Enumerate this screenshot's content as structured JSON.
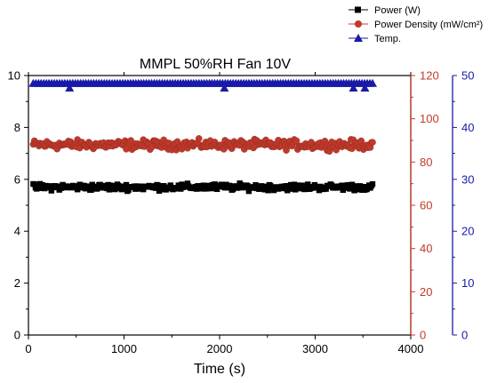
{
  "chart_data": {
    "type": "scatter",
    "title": "MMPL 50%RH Fan 10V",
    "xlabel": "Time (s)",
    "xlim": [
      0,
      4000
    ],
    "xticks": [
      "0",
      "1000",
      "2000",
      "3000",
      "4000"
    ],
    "left_axis": {
      "label": "",
      "ylim": [
        0,
        10
      ],
      "ticks": [
        "0",
        "2",
        "4",
        "6",
        "8",
        "10"
      ],
      "color": "#000000"
    },
    "right_axis_1": {
      "label": "",
      "ylim": [
        0,
        120
      ],
      "ticks": [
        "0",
        "20",
        "40",
        "60",
        "80",
        "100",
        "120"
      ],
      "color": "#c0392b"
    },
    "right_axis_2": {
      "label": "",
      "ylim": [
        0,
        50
      ],
      "ticks": [
        "0",
        "10",
        "20",
        "30",
        "40",
        "50"
      ],
      "color": "#1a1aa8"
    },
    "legend_position": "top-right",
    "series": [
      {
        "name": "Power (W)",
        "axis": "left",
        "marker": "square",
        "color": "#000000",
        "x_range": [
          50,
          3600
        ],
        "approx_mean": 5.7,
        "approx_min": 5.1,
        "approx_max": 6.3
      },
      {
        "name": "Power Density (mW/cm²)",
        "axis": "right_1",
        "marker": "circle",
        "color": "#c0392b",
        "x_range": [
          50,
          3600
        ],
        "approx_mean": 88,
        "approx_min": 81,
        "approx_max": 97
      },
      {
        "name": "Temp.",
        "axis": "right_2",
        "marker": "triangle",
        "color": "#1a1aa8",
        "x_range": [
          50,
          3600
        ],
        "approx_mean": 48.5,
        "approx_min": 47.6,
        "approx_max": 48.7
      }
    ]
  }
}
